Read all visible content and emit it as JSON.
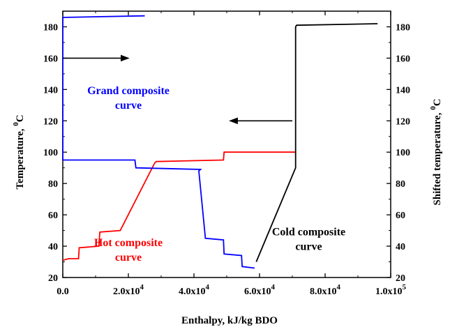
{
  "chart_data": {
    "type": "line",
    "xlabel": "Enthalpy, kJ/kg BDO",
    "ylabel_left": "Temperature, ",
    "ylabel_left_unit": "C",
    "ylabel_right": "Shifted temperature, ",
    "ylabel_right_unit": "C",
    "degree_marker": "0",
    "xlim": [
      0,
      100000
    ],
    "ylim": [
      20,
      190
    ],
    "xticks": [
      {
        "value": 0,
        "label": "0.0",
        "mantissa": "",
        "exponent": ""
      },
      {
        "value": 20000,
        "label": "",
        "mantissa": "2.0x10",
        "exponent": "4"
      },
      {
        "value": 40000,
        "label": "",
        "mantissa": "4.0x10",
        "exponent": "4"
      },
      {
        "value": 60000,
        "label": "",
        "mantissa": "6.0x10",
        "exponent": "4"
      },
      {
        "value": 80000,
        "label": "",
        "mantissa": "8.0x10",
        "exponent": "4"
      },
      {
        "value": 100000,
        "label": "",
        "mantissa": "1.0x10",
        "exponent": "5"
      }
    ],
    "yticks": [
      "20",
      "40",
      "60",
      "80",
      "100",
      "120",
      "140",
      "160",
      "180"
    ],
    "yticks_right": [
      "20",
      "40",
      "60",
      "80",
      "100",
      "120",
      "140",
      "160",
      "180"
    ],
    "series": [
      {
        "name": "Hot composite curve",
        "color": "#ff0000",
        "axis": "left",
        "points": [
          [
            0,
            31
          ],
          [
            1800,
            32
          ],
          [
            4800,
            32
          ],
          [
            5000,
            39
          ],
          [
            11000,
            40
          ],
          [
            11300,
            49
          ],
          [
            17500,
            50
          ],
          [
            28000,
            93
          ],
          [
            28500,
            94
          ],
          [
            49000,
            95
          ],
          [
            49200,
            100
          ],
          [
            71000,
            100
          ]
        ]
      },
      {
        "name": "Cold composite curve",
        "color": "#000000",
        "axis": "right",
        "points": [
          [
            59000,
            30
          ],
          [
            71000,
            90
          ],
          [
            71000,
            180
          ],
          [
            71300,
            181
          ],
          [
            96000,
            182
          ]
        ]
      },
      {
        "name": "Grand composite curve",
        "color": "#0000ff",
        "axis": "right",
        "points": [
          [
            25000,
            187
          ],
          [
            0,
            186
          ],
          [
            0,
            95
          ],
          [
            22000,
            95
          ],
          [
            22300,
            90
          ],
          [
            42000,
            89
          ],
          [
            41500,
            88
          ],
          [
            43500,
            45
          ],
          [
            49000,
            44
          ],
          [
            49200,
            35
          ],
          [
            54500,
            34
          ],
          [
            54700,
            27
          ],
          [
            58500,
            26
          ]
        ]
      }
    ],
    "annotations": [
      {
        "lines": [
          "Grand composite",
          "curve"
        ],
        "color": "#0000ff",
        "x": 20000,
        "y": 137
      },
      {
        "lines": [
          "Hot composite",
          "curve"
        ],
        "color": "#ff0000",
        "x": 20000,
        "y": 40
      },
      {
        "lines": [
          "Cold composite",
          "curve"
        ],
        "color": "#000000",
        "x": 75000,
        "y": 47
      }
    ],
    "arrows": [
      {
        "from": [
          0,
          160
        ],
        "to": [
          20000,
          160
        ],
        "color": "#000000"
      },
      {
        "from": [
          70000,
          120
        ],
        "to": [
          51000,
          120
        ],
        "color": "#000000"
      }
    ]
  }
}
